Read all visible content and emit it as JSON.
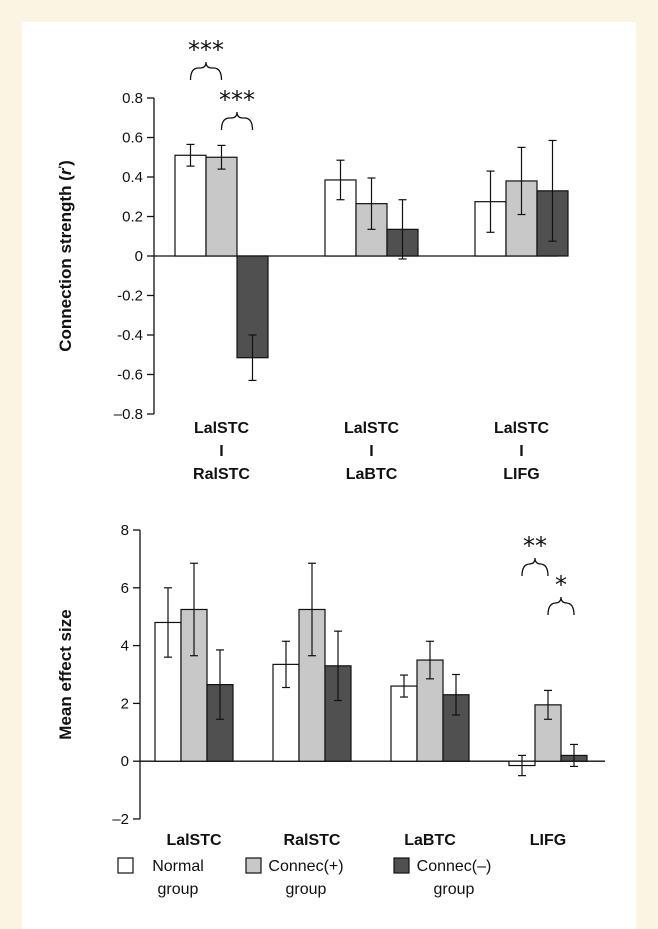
{
  "colors": {
    "Normal": "#ffffff",
    "Connec(+)": "#c8c8c8",
    "Connec(-)": "#505050",
    "background": "#fbf4e2"
  },
  "legend": {
    "items": [
      {
        "line1": "Normal",
        "line2": "group",
        "color": "#ffffff"
      },
      {
        "line1": "Connec(+)",
        "line2": "group",
        "color": "#c8c8c8"
      },
      {
        "line1": "Connec(–)",
        "line2": "group",
        "color": "#505050"
      }
    ]
  },
  "chart_data": [
    {
      "type": "bar",
      "ylabel_main": "Connection strength (",
      "ylabel_r": "r",
      "ylabel_tail": ")",
      "ylim": [
        -0.8,
        0.8
      ],
      "yticks": [
        "0.8",
        "0.6",
        "0.4",
        "0.2",
        "0",
        "-0.2",
        "-0.4",
        "-0.6",
        "–0.8"
      ],
      "ytick_values": [
        0.8,
        0.6,
        0.4,
        0.2,
        0,
        -0.2,
        -0.4,
        -0.6,
        -0.8
      ],
      "categories": [
        [
          "LalSTC",
          "I",
          "RalSTC"
        ],
        [
          "LalSTC",
          "I",
          "LaBTC"
        ],
        [
          "LalSTC",
          "I",
          "LIFG"
        ]
      ],
      "series": [
        {
          "name": "Normal group",
          "values": [
            0.51,
            0.385,
            0.275
          ],
          "errors": [
            0.055,
            0.1,
            0.155
          ]
        },
        {
          "name": "Connec(+) group",
          "values": [
            0.5,
            0.265,
            0.38
          ],
          "errors": [
            0.06,
            0.13,
            0.17
          ]
        },
        {
          "name": "Connec(–) group",
          "values": [
            -0.515,
            0.135,
            0.33
          ],
          "errors": [
            0.115,
            0.15,
            0.255
          ]
        }
      ],
      "annotations": [
        {
          "text": "***",
          "from_series": 0,
          "to_series": 1,
          "category": 0
        },
        {
          "text": "***",
          "from_series": 1,
          "to_series": 2,
          "category": 0
        }
      ]
    },
    {
      "type": "bar",
      "ylabel": "Mean effect size",
      "ylim": [
        -2,
        8
      ],
      "yticks": [
        "8",
        "6",
        "4",
        "2",
        "0",
        "–2"
      ],
      "ytick_values": [
        8,
        6,
        4,
        2,
        0,
        -2
      ],
      "categories": [
        [
          "LalSTC"
        ],
        [
          "RalSTC"
        ],
        [
          "LaBTC"
        ],
        [
          "LIFG"
        ]
      ],
      "series": [
        {
          "name": "Normal group",
          "values": [
            4.8,
            3.35,
            2.6,
            -0.15
          ],
          "errors": [
            1.2,
            0.8,
            0.38,
            0.35
          ]
        },
        {
          "name": "Connec(+) group",
          "values": [
            5.25,
            5.25,
            3.5,
            1.95
          ],
          "errors": [
            1.6,
            1.6,
            0.65,
            0.5
          ]
        },
        {
          "name": "Connec(–) group",
          "values": [
            2.65,
            3.3,
            2.3,
            0.2
          ],
          "errors": [
            1.2,
            1.2,
            0.7,
            0.38
          ]
        }
      ],
      "annotations": [
        {
          "text": "**",
          "from_series": 0,
          "to_series": 1,
          "category": 3
        },
        {
          "text": "*",
          "from_series": 1,
          "to_series": 2,
          "category": 3
        }
      ]
    }
  ]
}
